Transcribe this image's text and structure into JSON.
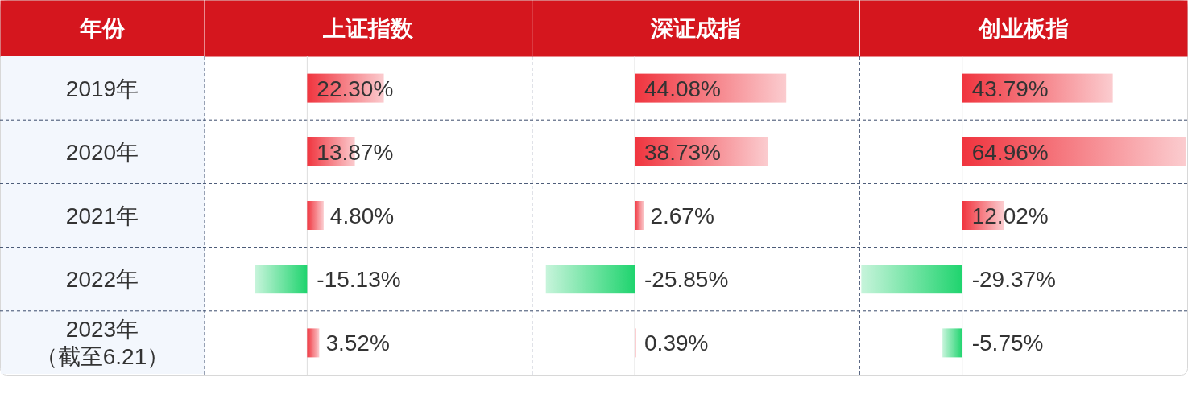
{
  "chart_data": [
    {
      "type": "bar",
      "orientation": "horizontal",
      "title": "上证指数",
      "ylabel": "年份",
      "categories": [
        "2019年",
        "2020年",
        "2021年",
        "2022年",
        "2023年（截至6.21）"
      ],
      "values": [
        22.3,
        13.87,
        4.8,
        -15.13,
        3.52
      ],
      "colors": [
        "#f0343e",
        "#f0343e",
        "#f0343e",
        "#1fd46e",
        "#f0343e"
      ],
      "value_labels": [
        "22.30%",
        "13.87%",
        "4.80%",
        "-15.13%",
        "3.52%"
      ],
      "tick_labels": "y"
    },
    {
      "type": "bar",
      "orientation": "horizontal",
      "title": "深证成指",
      "values": [
        44.08,
        38.73,
        2.67,
        -25.85,
        0.39
      ],
      "colors": [
        "#f0343e",
        "#f0343e",
        "#f0343e",
        "#1fd46e",
        "#f0343e"
      ],
      "value_labels": [
        "44.08%",
        "38.73%",
        "2.67%",
        "-25.85%",
        "0.39%"
      ],
      "tick_labels": false
    },
    {
      "type": "bar",
      "orientation": "horizontal",
      "title": "创业板指",
      "values": [
        43.79,
        64.96,
        12.02,
        -29.37,
        -5.75
      ],
      "colors": [
        "#f0343e",
        "#f0343e",
        "#f0343e",
        "#1fd46e",
        "#1fd46e"
      ],
      "value_labels": [
        "43.79%",
        "64.96%",
        "12.02%",
        "-29.37%",
        "-5.75%"
      ],
      "tick_labels": false
    }
  ]
}
